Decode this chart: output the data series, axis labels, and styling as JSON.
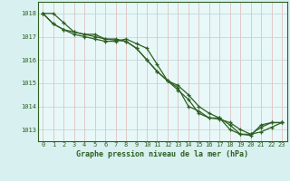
{
  "title": "Graphe pression niveau de la mer (hPa)",
  "background_color": "#d8f0f0",
  "plot_bg_color": "#e8f8f8",
  "grid_color_h": "#c8dede",
  "grid_color_v": "#e0c8c8",
  "line_color": "#2d6020",
  "ylim": [
    1012.5,
    1018.5
  ],
  "xlim": [
    -0.5,
    23.5
  ],
  "yticks": [
    1013,
    1014,
    1015,
    1016,
    1017,
    1018
  ],
  "xticks": [
    0,
    1,
    2,
    3,
    4,
    5,
    6,
    7,
    8,
    9,
    10,
    11,
    12,
    13,
    14,
    15,
    16,
    17,
    18,
    19,
    20,
    21,
    22,
    23
  ],
  "line1": [
    1018.0,
    1018.0,
    1017.6,
    1017.2,
    1017.1,
    1017.0,
    1016.9,
    1016.85,
    1016.8,
    1016.5,
    1016.0,
    1015.5,
    1015.1,
    1014.8,
    1014.0,
    1013.8,
    1013.5,
    1013.45,
    1013.3,
    1013.0,
    1012.8,
    1013.1,
    1013.3,
    1013.3
  ],
  "line2": [
    1018.0,
    1017.55,
    1017.3,
    1017.1,
    1017.0,
    1016.9,
    1016.8,
    1016.8,
    1016.9,
    1016.7,
    1016.5,
    1015.8,
    1015.1,
    1014.7,
    1014.3,
    1013.7,
    1013.5,
    1013.5,
    1013.0,
    1012.8,
    1012.8,
    1012.9,
    1013.1,
    1013.3
  ],
  "line3": [
    1018.0,
    1017.55,
    1017.3,
    1017.2,
    1017.1,
    1017.1,
    1016.9,
    1016.9,
    1016.8,
    1016.5,
    1016.0,
    1015.5,
    1015.1,
    1014.9,
    1014.5,
    1014.0,
    1013.7,
    1013.5,
    1013.2,
    1012.8,
    1012.75,
    1013.2,
    1013.3,
    1013.3
  ]
}
